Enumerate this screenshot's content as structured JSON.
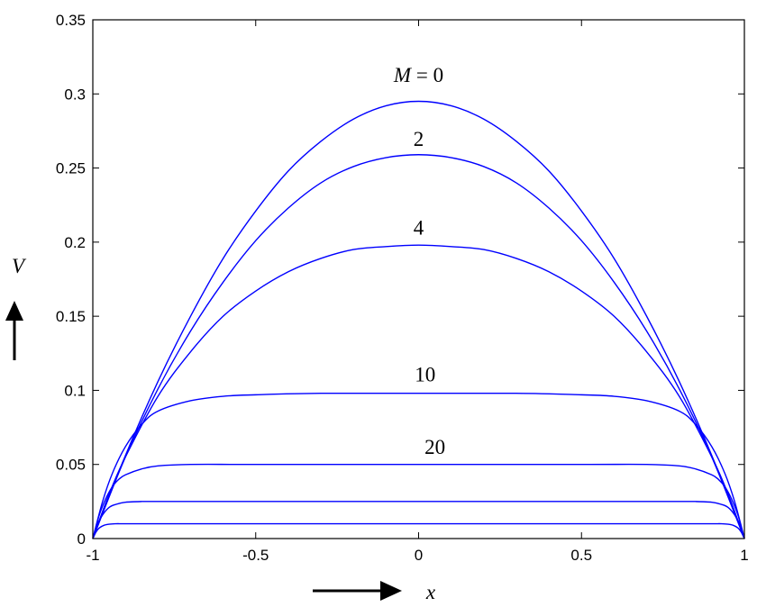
{
  "chart_data": {
    "type": "line",
    "title": "",
    "xlabel": "x",
    "ylabel": "V",
    "xlim": [
      -1,
      1
    ],
    "ylim": [
      0,
      0.35
    ],
    "x_ticks": [
      -1,
      -0.5,
      0,
      0.5,
      1
    ],
    "x_tick_labels": [
      "-1",
      "-0.5",
      "0",
      "0.5",
      "1"
    ],
    "y_ticks": [
      0,
      0.05,
      0.1,
      0.15,
      0.2,
      0.25,
      0.3,
      0.35
    ],
    "y_tick_labels": [
      "0",
      "0.05",
      "0.1",
      "0.15",
      "0.2",
      "0.25",
      "0.3",
      "0.35"
    ],
    "grid": false,
    "line_color": "#0000ff",
    "series": [
      {
        "label": "M = 0",
        "x": [
          -1,
          -0.9,
          -0.8,
          -0.7,
          -0.6,
          -0.5,
          -0.4,
          -0.3,
          -0.2,
          -0.1,
          0,
          0.1,
          0.2,
          0.3,
          0.4,
          0.5,
          0.6,
          0.7,
          0.8,
          0.9,
          1
        ],
        "values": [
          0,
          0.056,
          0.106,
          0.15,
          0.189,
          0.221,
          0.248,
          0.268,
          0.283,
          0.292,
          0.295,
          0.292,
          0.283,
          0.268,
          0.248,
          0.221,
          0.189,
          0.15,
          0.106,
          0.056,
          0
        ]
      },
      {
        "label": "2",
        "x": [
          -1,
          -0.9,
          -0.8,
          -0.7,
          -0.6,
          -0.5,
          -0.4,
          -0.3,
          -0.2,
          -0.1,
          0,
          0.1,
          0.2,
          0.3,
          0.4,
          0.5,
          0.6,
          0.7,
          0.8,
          0.9,
          1
        ],
        "values": [
          0,
          0.055,
          0.101,
          0.14,
          0.173,
          0.201,
          0.223,
          0.24,
          0.251,
          0.257,
          0.259,
          0.257,
          0.251,
          0.24,
          0.223,
          0.201,
          0.173,
          0.14,
          0.101,
          0.055,
          0
        ]
      },
      {
        "label": "4",
        "x": [
          -1,
          -0.95,
          -0.9,
          -0.8,
          -0.7,
          -0.6,
          -0.5,
          -0.4,
          -0.3,
          -0.2,
          -0.1,
          0,
          0.1,
          0.2,
          0.3,
          0.4,
          0.5,
          0.6,
          0.7,
          0.8,
          0.9,
          0.95,
          1
        ],
        "values": [
          0,
          0.03,
          0.055,
          0.096,
          0.126,
          0.15,
          0.167,
          0.18,
          0.189,
          0.195,
          0.197,
          0.198,
          0.197,
          0.195,
          0.189,
          0.18,
          0.167,
          0.15,
          0.126,
          0.096,
          0.055,
          0.03,
          0
        ]
      },
      {
        "label": "10",
        "x": [
          -1,
          -0.97,
          -0.94,
          -0.9,
          -0.85,
          -0.8,
          -0.7,
          -0.6,
          -0.5,
          -0.3,
          0,
          0.3,
          0.5,
          0.6,
          0.7,
          0.8,
          0.85,
          0.9,
          0.94,
          0.97,
          1
        ],
        "values": [
          0,
          0.025,
          0.044,
          0.062,
          0.077,
          0.086,
          0.093,
          0.096,
          0.097,
          0.098,
          0.098,
          0.098,
          0.097,
          0.096,
          0.093,
          0.086,
          0.077,
          0.062,
          0.044,
          0.025,
          0
        ]
      },
      {
        "label": "20",
        "x": [
          -1,
          -0.98,
          -0.96,
          -0.94,
          -0.92,
          -0.9,
          -0.85,
          -0.8,
          -0.7,
          -0.5,
          0,
          0.5,
          0.7,
          0.8,
          0.85,
          0.9,
          0.92,
          0.94,
          0.96,
          0.98,
          1
        ],
        "values": [
          0,
          0.016,
          0.027,
          0.035,
          0.04,
          0.043,
          0.047,
          0.049,
          0.05,
          0.05,
          0.05,
          0.05,
          0.05,
          0.049,
          0.047,
          0.043,
          0.04,
          0.035,
          0.027,
          0.016,
          0
        ]
      },
      {
        "label": "",
        "x": [
          -1,
          -0.985,
          -0.97,
          -0.95,
          -0.93,
          -0.9,
          -0.85,
          -0.8,
          -0.5,
          0,
          0.5,
          0.8,
          0.85,
          0.9,
          0.93,
          0.95,
          0.97,
          0.985,
          1
        ],
        "values": [
          0,
          0.01,
          0.016,
          0.021,
          0.023,
          0.0245,
          0.025,
          0.025,
          0.025,
          0.025,
          0.025,
          0.025,
          0.025,
          0.0245,
          0.023,
          0.021,
          0.016,
          0.01,
          0
        ]
      },
      {
        "label": "",
        "x": [
          -1,
          -0.99,
          -0.98,
          -0.965,
          -0.95,
          -0.93,
          -0.9,
          -0.8,
          0,
          0.8,
          0.9,
          0.93,
          0.95,
          0.965,
          0.98,
          0.99,
          1
        ],
        "values": [
          0,
          0.0045,
          0.0072,
          0.009,
          0.0097,
          0.01,
          0.01,
          0.01,
          0.01,
          0.01,
          0.01,
          0.01,
          0.0097,
          0.009,
          0.0072,
          0.0045,
          0
        ]
      }
    ],
    "annotations": [
      {
        "text": "M = 0",
        "x": 0.0,
        "y": 0.308
      },
      {
        "text": "2",
        "x": 0.0,
        "y": 0.265
      },
      {
        "text": "4",
        "x": 0.0,
        "y": 0.205
      },
      {
        "text": "10",
        "x": 0.02,
        "y": 0.106
      },
      {
        "text": "20",
        "x": 0.05,
        "y": 0.057
      }
    ]
  }
}
